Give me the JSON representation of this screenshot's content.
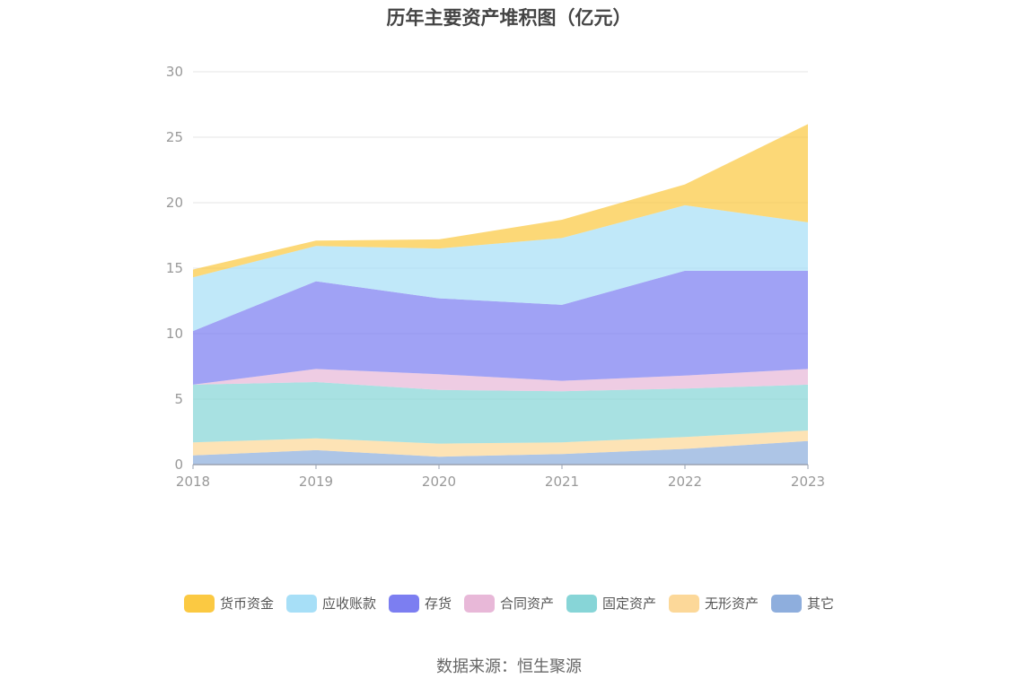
{
  "chart_data": {
    "type": "area",
    "stacked": true,
    "title": "历年主要资产堆积图（亿元）",
    "x": [
      "2018",
      "2019",
      "2020",
      "2021",
      "2022",
      "2023"
    ],
    "ylim": [
      0,
      30
    ],
    "yticks": [
      0,
      5,
      10,
      15,
      20,
      25,
      30
    ],
    "grid": true,
    "legend_position": "bottom",
    "series": [
      {
        "name": "其它",
        "color": "#8eaedd",
        "values": [
          0.7,
          1.1,
          0.6,
          0.8,
          1.2,
          1.8
        ]
      },
      {
        "name": "无形资产",
        "color": "#fcd899",
        "values": [
          1.0,
          0.9,
          1.0,
          0.9,
          0.9,
          0.8
        ]
      },
      {
        "name": "固定资产",
        "color": "#87d5d7",
        "values": [
          4.4,
          4.3,
          4.1,
          3.9,
          3.7,
          3.5
        ]
      },
      {
        "name": "合同资产",
        "color": "#e8b8d8",
        "values": [
          0.0,
          1.0,
          1.2,
          0.8,
          1.0,
          1.2
        ]
      },
      {
        "name": "存货",
        "color": "#7c7ef1",
        "values": [
          4.1,
          6.7,
          5.8,
          5.8,
          8.0,
          7.5
        ]
      },
      {
        "name": "应收账款",
        "color": "#a7dff7",
        "values": [
          4.1,
          2.7,
          3.8,
          5.1,
          5.0,
          3.7
        ]
      },
      {
        "name": "货币资金",
        "color": "#fbc942",
        "values": [
          0.6,
          0.4,
          0.7,
          1.4,
          1.6,
          7.5
        ]
      }
    ],
    "legend_order": [
      "货币资金",
      "应收账款",
      "存货",
      "合同资产",
      "固定资产",
      "无形资产",
      "其它"
    ]
  },
  "source_note": "数据来源：恒生聚源"
}
